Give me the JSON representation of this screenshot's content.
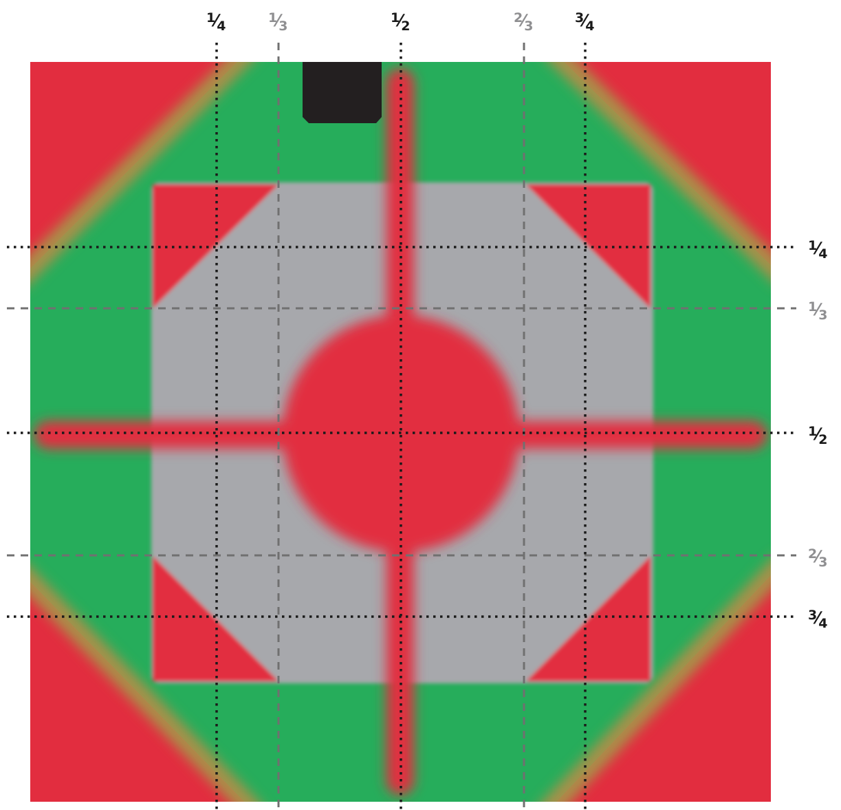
{
  "colors": {
    "red": "#e22d3f",
    "green": "#26ad5b",
    "gray": "#a7a8ac",
    "black": "#231f20",
    "line_dark": "#1a1a1a",
    "line_gray": "#707070",
    "label_gray": "#8f8f91"
  },
  "vertical_guides": [
    {
      "num": "1",
      "den": "4",
      "style": "dotted",
      "tone": "dark"
    },
    {
      "num": "1",
      "den": "3",
      "style": "dashed",
      "tone": "gray"
    },
    {
      "num": "1",
      "den": "2",
      "style": "dotted",
      "tone": "dark"
    },
    {
      "num": "2",
      "den": "3",
      "style": "dashed",
      "tone": "gray"
    },
    {
      "num": "3",
      "den": "4",
      "style": "dotted",
      "tone": "dark"
    }
  ],
  "horizontal_guides": [
    {
      "num": "1",
      "den": "4",
      "style": "dotted",
      "tone": "dark"
    },
    {
      "num": "1",
      "den": "3",
      "style": "dashed",
      "tone": "gray"
    },
    {
      "num": "1",
      "den": "2",
      "style": "dotted",
      "tone": "dark"
    },
    {
      "num": "2",
      "den": "3",
      "style": "dashed",
      "tone": "gray"
    },
    {
      "num": "3",
      "den": "4",
      "style": "dotted",
      "tone": "dark"
    }
  ]
}
